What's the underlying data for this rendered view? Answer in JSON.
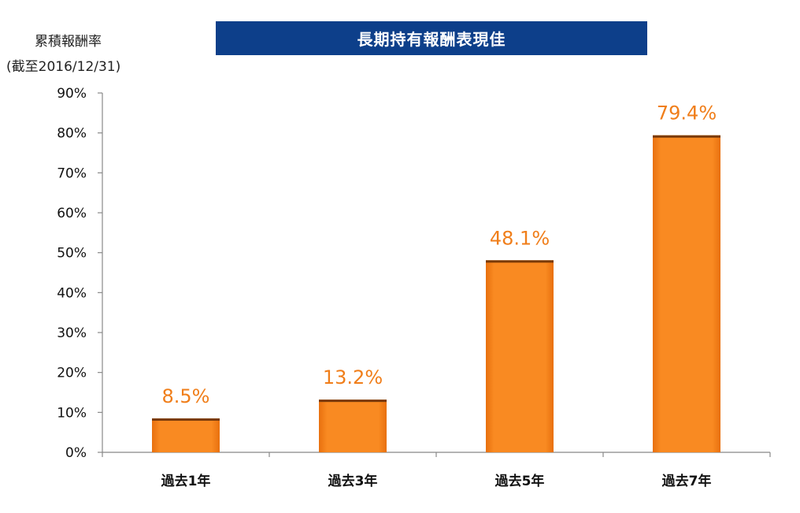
{
  "chart_data": {
    "type": "bar",
    "title": "長期持有報酬表現佳",
    "ylabel": [
      "累積報酬率",
      "(截至2016/12/31)"
    ],
    "xlabel": "",
    "categories": [
      "過去1年",
      "過去3年",
      "過去5年",
      "過去7年"
    ],
    "values": [
      8.5,
      13.2,
      48.1,
      79.4
    ],
    "data_labels": [
      "8.5%",
      "13.2%",
      "48.1%",
      "79.4%"
    ],
    "ylim": [
      0,
      90
    ],
    "yticks": [
      0,
      10,
      20,
      30,
      40,
      50,
      60,
      70,
      80,
      90
    ],
    "ytick_labels": [
      "0%",
      "10%",
      "20%",
      "30%",
      "40%",
      "50%",
      "60%",
      "70%",
      "80%",
      "90%"
    ],
    "grid": false,
    "legend": "none"
  },
  "colors": {
    "bar": "#f5841f",
    "bar_top": "#7a3a08",
    "data_label": "#f07e1a",
    "title_bg": "#0d3f8a",
    "title_text": "#ffffff",
    "axis": "#888888"
  }
}
